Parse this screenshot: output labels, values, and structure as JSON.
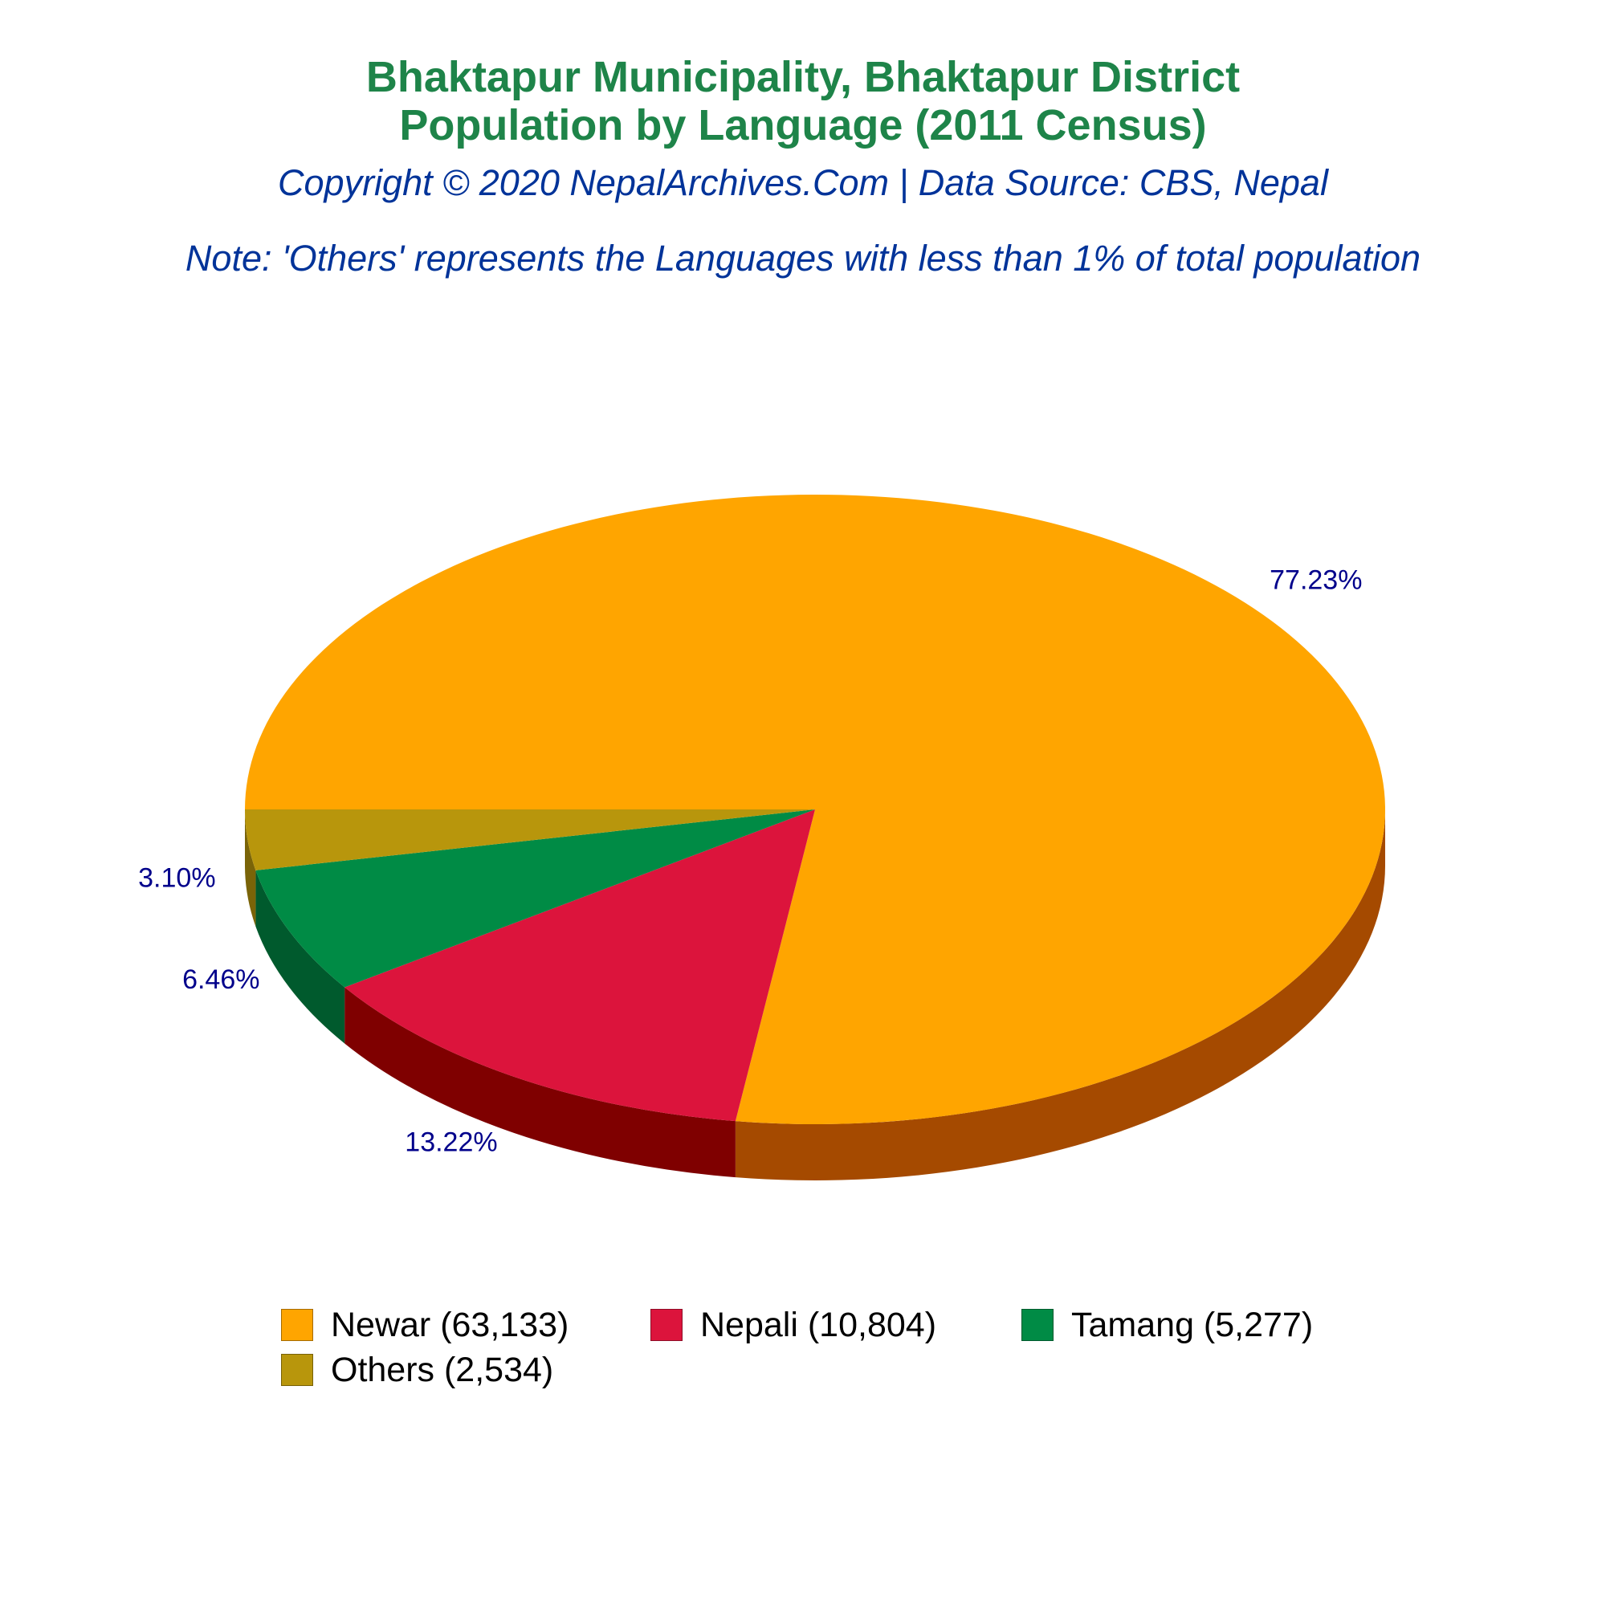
{
  "header": {
    "title_line1": "Bhaktapur Municipality, Bhaktapur District",
    "title_line2": "Population by Language (2011 Census)",
    "copyright": "Copyright © 2020 NepalArchives.Com | Data Source: CBS, Nepal",
    "note": "Note: 'Others' represents the Languages with less than 1% of total population"
  },
  "colors": {
    "title": "#1e8449",
    "subtitle": "#003399",
    "pct_label": "#00008b"
  },
  "chart_data": {
    "type": "pie",
    "style": "3d",
    "legend_position": "bottom",
    "slices": [
      {
        "label": "Newar",
        "value": 63133,
        "percent_label": "77.23%",
        "legend_label": "Newar (63,133)",
        "color": "#ffa500",
        "side_color": "#a54a00"
      },
      {
        "label": "Nepali",
        "value": 10804,
        "percent_label": "13.22%",
        "legend_label": "Nepali (10,804)",
        "color": "#dc143c",
        "side_color": "#7f0000"
      },
      {
        "label": "Tamang",
        "value": 5277,
        "percent_label": "6.46%",
        "legend_label": "Tamang (5,277)",
        "color": "#008b45",
        "side_color": "#005a2d"
      },
      {
        "label": "Others",
        "value": 2534,
        "percent_label": "3.10%",
        "legend_label": "Others (2,534)",
        "color": "#b8960c",
        "side_color": "#7a6408"
      }
    ]
  }
}
